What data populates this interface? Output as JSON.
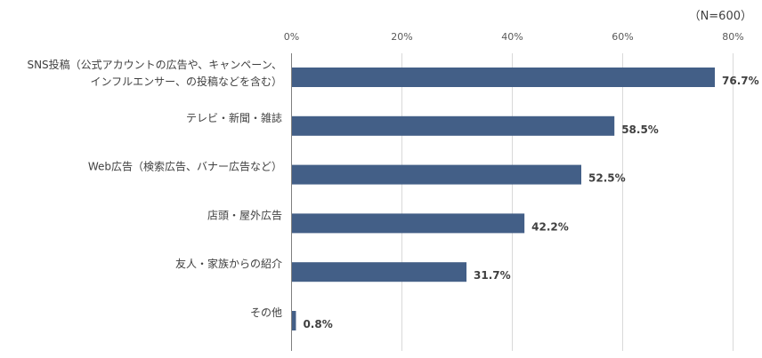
{
  "chart_data": {
    "type": "bar",
    "orientation": "horizontal",
    "note": "（N=600）",
    "categories": [
      [
        "SNS投稿（公式アカウントの広告や、キャンペーン、",
        "インフルエンサー、の投稿などを含む）"
      ],
      [
        "テレビ・新聞・雑誌"
      ],
      [
        "Web広告（検索広告、バナー広告など）"
      ],
      [
        "店頭・屋外広告"
      ],
      [
        "友人・家族からの紹介"
      ],
      [
        "その他"
      ]
    ],
    "values": [
      76.7,
      58.5,
      52.5,
      42.2,
      31.7,
      0.8
    ],
    "value_labels": [
      "76.7%",
      "58.5%",
      "52.5%",
      "42.2%",
      "31.7%",
      "0.8%"
    ],
    "xlim": [
      0,
      80
    ],
    "ticks": [
      "0%",
      "20%",
      "40%",
      "60%",
      "80%"
    ],
    "tick_values": [
      0,
      20,
      40,
      60,
      80
    ],
    "grid": true,
    "bar_color": "#435F87",
    "grid_color": "#D9D9D9"
  }
}
